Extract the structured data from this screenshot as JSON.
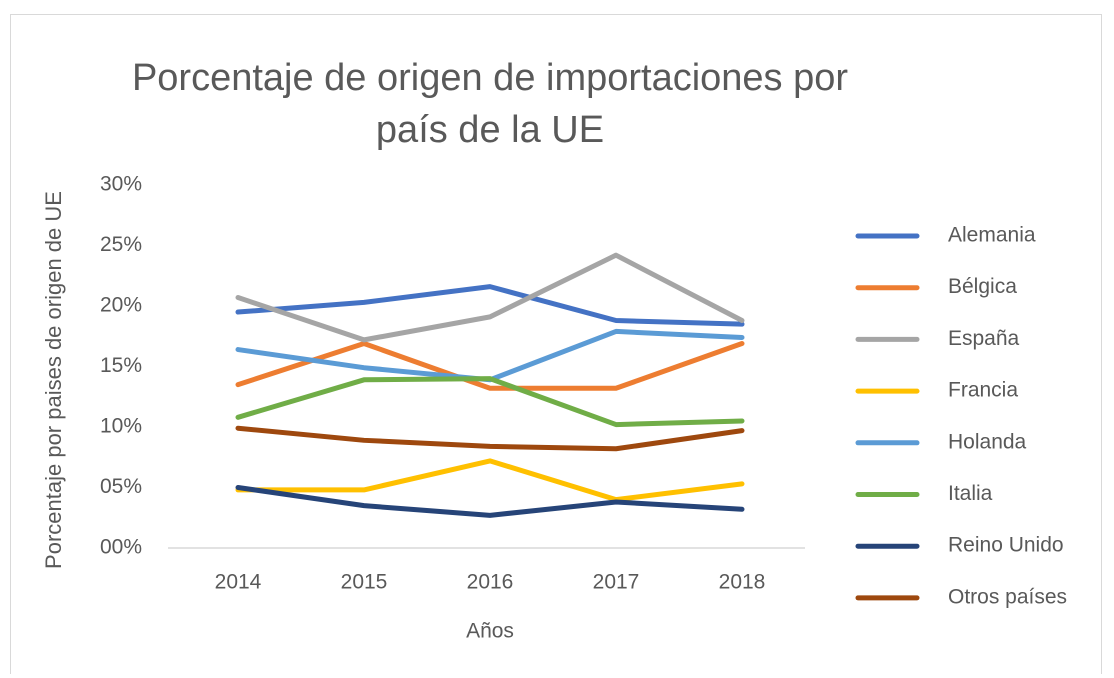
{
  "chart_data": {
    "type": "line",
    "title": "Porcentaje de origen de importaciones por país de la UE",
    "x_label": "Años",
    "y_label": "Porcentaje por paises de origen de UE",
    "categories": [
      "2014",
      "2015",
      "2016",
      "2017",
      "2018"
    ],
    "ylim": [
      0,
      30
    ],
    "yticks": [
      {
        "value": 0,
        "label": "00%"
      },
      {
        "value": 5,
        "label": "05%"
      },
      {
        "value": 10,
        "label": "10%"
      },
      {
        "value": 15,
        "label": "15%"
      },
      {
        "value": 20,
        "label": "20%"
      },
      {
        "value": 25,
        "label": "25%"
      },
      {
        "value": 30,
        "label": "30%"
      }
    ],
    "grid": false,
    "legend": "right",
    "series": [
      {
        "name": "Alemania",
        "color": "#4472c4",
        "values": [
          19.5,
          20.3,
          21.6,
          18.8,
          18.5
        ]
      },
      {
        "name": "Bélgica",
        "color": "#ed7d31",
        "values": [
          13.5,
          16.9,
          13.2,
          13.2,
          16.9
        ]
      },
      {
        "name": "España",
        "color": "#a5a5a5",
        "values": [
          20.7,
          17.2,
          19.1,
          24.2,
          18.8
        ]
      },
      {
        "name": "Francia",
        "color": "#ffc000",
        "values": [
          4.8,
          4.8,
          7.2,
          4.0,
          5.3
        ]
      },
      {
        "name": "Holanda",
        "color": "#5b9bd5",
        "values": [
          16.4,
          14.9,
          13.9,
          17.9,
          17.4
        ]
      },
      {
        "name": "Italia",
        "color": "#70ad47",
        "values": [
          10.8,
          13.9,
          14.0,
          10.2,
          10.5
        ]
      },
      {
        "name": "Reino Unido",
        "color": "#264478",
        "values": [
          5.0,
          3.5,
          2.7,
          3.8,
          3.2
        ]
      },
      {
        "name": "Otros países",
        "color": "#9e480e",
        "values": [
          9.9,
          8.9,
          8.4,
          8.2,
          9.7
        ]
      }
    ]
  }
}
